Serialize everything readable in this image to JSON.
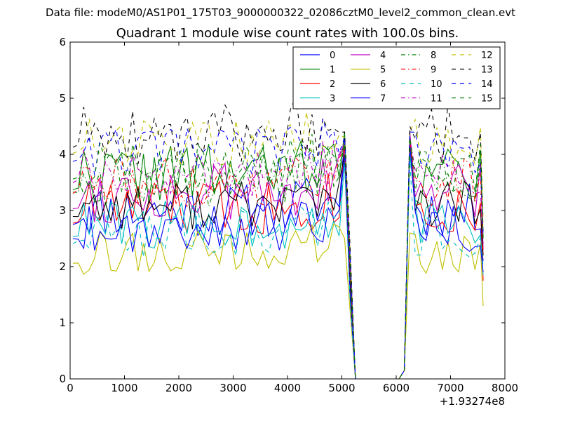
{
  "chart_data": {
    "type": "line",
    "suptitle": "Data file: modeM0/AS1P01_175T03_9000000322_02086cztM0_level2_common_clean.evt",
    "title": "Quadrant 1 module wise count rates with 100.0s bins.",
    "xlabel": "",
    "ylabel": "",
    "xlim": [
      0,
      8000
    ],
    "ylim": [
      0,
      6
    ],
    "x_ticks": [
      0,
      1000,
      2000,
      3000,
      4000,
      5000,
      6000,
      7000,
      8000
    ],
    "x_tick_labels": [
      "0",
      "1000",
      "2000",
      "3000",
      "4000",
      "5000",
      "6000",
      "7000",
      "8000"
    ],
    "y_ticks": [
      0,
      1,
      2,
      3,
      4,
      5,
      6
    ],
    "y_tick_labels": [
      "0",
      "1",
      "2",
      "3",
      "4",
      "5",
      "6"
    ],
    "x_offset_label": "+1.93274e8",
    "grid": false,
    "legend_position": "top-right",
    "legend_columns": 4,
    "gap_interval": [
      5300,
      6100
    ],
    "bin_width": 100,
    "segment1_x_range": [
      50,
      5050
    ],
    "segment2_x_range": [
      6250,
      7550
    ],
    "series": [
      {
        "name": "0",
        "color": "#0000ff",
        "style": "solid",
        "mean": 3.0,
        "amp": 0.22,
        "peak1": 4.3,
        "peak2": 4.3,
        "end": 2.1,
        "seed": 11
      },
      {
        "name": "1",
        "color": "#008000",
        "style": "solid",
        "mean": 3.65,
        "amp": 0.25,
        "peak1": 4.4,
        "peak2": 4.4,
        "end": 2.5,
        "seed": 22
      },
      {
        "name": "2",
        "color": "#ff0000",
        "style": "solid",
        "mean": 3.05,
        "amp": 0.25,
        "peak1": 4.2,
        "peak2": 4.3,
        "end": 1.75,
        "seed": 33
      },
      {
        "name": "3",
        "color": "#00bfbf",
        "style": "solid",
        "mean": 2.75,
        "amp": 0.2,
        "peak1": 3.9,
        "peak2": 4.0,
        "end": 1.85,
        "seed": 44
      },
      {
        "name": "4",
        "color": "#bf00bf",
        "style": "solid",
        "mean": 3.3,
        "amp": 0.25,
        "peak1": 4.2,
        "peak2": 4.4,
        "end": 2.3,
        "seed": 55
      },
      {
        "name": "5",
        "color": "#bfbf00",
        "style": "solid",
        "mean": 2.25,
        "amp": 0.18,
        "peak1": 2.5,
        "peak2": 2.6,
        "end": 1.3,
        "seed": 66
      },
      {
        "name": "6",
        "color": "#000000",
        "style": "solid",
        "mean": 3.1,
        "amp": 0.2,
        "peak1": 4.0,
        "peak2": 4.2,
        "end": 2.2,
        "seed": 77
      },
      {
        "name": "7",
        "color": "#0000ff",
        "style": "solid",
        "mean": 2.7,
        "amp": 0.2,
        "peak1": 4.0,
        "peak2": 4.2,
        "end": 1.9,
        "seed": 88
      },
      {
        "name": "8",
        "color": "#008000",
        "style": "dashdot",
        "mean": 3.55,
        "amp": 0.22,
        "peak1": 4.2,
        "peak2": 4.3,
        "end": 2.6,
        "seed": 99
      },
      {
        "name": "9",
        "color": "#ff0000",
        "style": "dashdot",
        "mean": 3.5,
        "amp": 0.2,
        "peak1": 4.1,
        "peak2": 4.2,
        "end": 2.2,
        "seed": 111
      },
      {
        "name": "10",
        "color": "#00bfbf",
        "style": "dashed",
        "mean": 2.6,
        "amp": 0.2,
        "peak1": 3.8,
        "peak2": 3.9,
        "end": 2.0,
        "seed": 122
      },
      {
        "name": "11",
        "color": "#bf00bf",
        "style": "dashdot",
        "mean": 3.7,
        "amp": 0.22,
        "peak1": 4.2,
        "peak2": 4.3,
        "end": 2.4,
        "seed": 133
      },
      {
        "name": "12",
        "color": "#bfbf00",
        "style": "dashed",
        "mean": 4.2,
        "amp": 0.2,
        "peak1": 4.3,
        "peak2": 4.4,
        "end": 2.8,
        "seed": 144
      },
      {
        "name": "13",
        "color": "#000000",
        "style": "dashed",
        "mean": 4.35,
        "amp": 0.25,
        "peak1": 4.4,
        "peak2": 4.5,
        "end": 2.5,
        "seed": 155
      },
      {
        "name": "14",
        "color": "#0000ff",
        "style": "dashed",
        "mean": 4.05,
        "amp": 0.2,
        "peak1": 4.3,
        "peak2": 4.4,
        "end": 2.6,
        "seed": 166
      },
      {
        "name": "15",
        "color": "#008000",
        "style": "dashed",
        "mean": 3.75,
        "amp": 0.22,
        "peak1": 4.2,
        "peak2": 4.3,
        "end": 2.5,
        "seed": 177
      }
    ]
  }
}
